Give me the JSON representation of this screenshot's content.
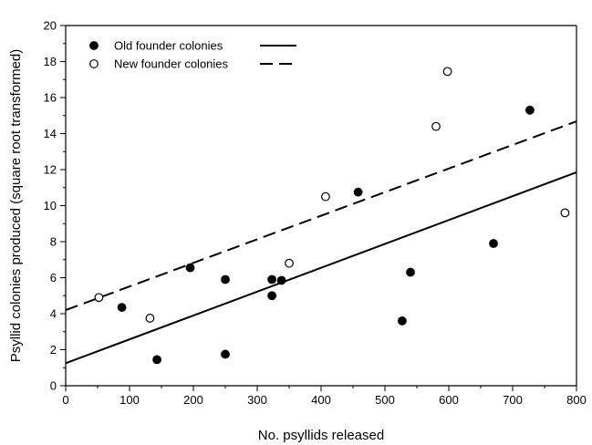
{
  "chart_data": {
    "type": "scatter",
    "title": "",
    "xlabel": "No. psyllids released",
    "ylabel": "Psyllid colonies produced (square root transformed)",
    "xlim": [
      0,
      800
    ],
    "ylim": [
      0,
      20
    ],
    "x_ticks": [
      0,
      100,
      200,
      300,
      400,
      500,
      600,
      700,
      800
    ],
    "y_ticks": [
      0,
      2,
      4,
      6,
      8,
      10,
      12,
      14,
      16,
      18,
      20
    ],
    "grid": false,
    "legend_position": "top-left",
    "series": [
      {
        "name": "Old founder colonies",
        "marker": "filled-circle",
        "line_style": "solid",
        "color": "#000000",
        "points": [
          {
            "x": 88,
            "y": 4.35
          },
          {
            "x": 143,
            "y": 1.45
          },
          {
            "x": 195,
            "y": 6.55
          },
          {
            "x": 250,
            "y": 5.9
          },
          {
            "x": 250,
            "y": 1.75
          },
          {
            "x": 323,
            "y": 5.9
          },
          {
            "x": 323,
            "y": 5.0
          },
          {
            "x": 338,
            "y": 5.85
          },
          {
            "x": 458,
            "y": 10.75
          },
          {
            "x": 527,
            "y": 3.6
          },
          {
            "x": 540,
            "y": 6.3
          },
          {
            "x": 670,
            "y": 7.9
          },
          {
            "x": 727,
            "y": 15.3
          }
        ],
        "fit": {
          "intercept": 1.25,
          "slope": 0.01325
        }
      },
      {
        "name": "New founder colonies",
        "marker": "open-circle",
        "line_style": "dashed",
        "color": "#000000",
        "points": [
          {
            "x": 52,
            "y": 4.9
          },
          {
            "x": 132,
            "y": 3.75
          },
          {
            "x": 350,
            "y": 6.8
          },
          {
            "x": 407,
            "y": 10.5
          },
          {
            "x": 580,
            "y": 14.4
          },
          {
            "x": 598,
            "y": 17.45
          },
          {
            "x": 782,
            "y": 9.6
          }
        ],
        "fit": {
          "intercept": 4.2,
          "slope": 0.0131
        }
      }
    ]
  }
}
